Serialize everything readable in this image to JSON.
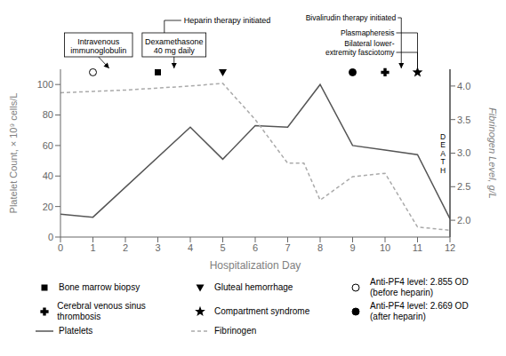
{
  "chart_data": {
    "type": "line",
    "xlabel": "Hospitalization Day",
    "ylabel": "Platelet Count, × 10⁹ cells/L",
    "y2label": "Fibrinogen Level, g/L",
    "xlim": [
      0,
      12
    ],
    "xticks": [
      0,
      1,
      2,
      3,
      4,
      5,
      6,
      7,
      8,
      9,
      10,
      11,
      12
    ],
    "ylim": [
      0,
      110
    ],
    "yticks": [
      0,
      20,
      40,
      60,
      80,
      100
    ],
    "y2lim": [
      1.75,
      4.25
    ],
    "y2ticks": [
      {
        "value": 2.0,
        "label": "2.0"
      },
      {
        "value": 2.5,
        "label": "2.5"
      },
      {
        "value": 3.0,
        "label": "3.0"
      },
      {
        "value": 3.5,
        "label": "3.5"
      },
      {
        "value": 4.0,
        "label": "4.0"
      }
    ],
    "grid": false,
    "legend": "bottom",
    "series": [
      {
        "name": "Platelets",
        "color": "#555555",
        "line_style": "solid",
        "x": [
          0,
          1,
          4,
          5,
          6,
          7,
          8,
          9,
          10,
          11,
          12
        ],
        "values": [
          15,
          13,
          72,
          51,
          73,
          72,
          100,
          60,
          57,
          54,
          12
        ]
      },
      {
        "name": "Fibrinogen",
        "color": "#aaaaaa",
        "line_style": "dashed",
        "axis": "y2",
        "x": [
          0,
          1,
          2,
          3,
          4,
          5,
          6,
          7,
          7.5,
          8,
          9,
          10,
          11,
          12
        ],
        "values": [
          3.9,
          3.92,
          3.94,
          3.97,
          4.0,
          4.04,
          3.5,
          2.85,
          2.85,
          2.3,
          2.65,
          2.7,
          1.9,
          1.85
        ]
      }
    ],
    "events": [
      {
        "name": "Bone marrow biopsy",
        "marker": "square",
        "color": "#000000",
        "x": 3,
        "y": 108
      },
      {
        "name": "Cerebral venous sinus thrombosis",
        "marker": "plus",
        "color": "#000000",
        "x": 10,
        "y": 108
      },
      {
        "name": "Gluteal hemorrhage",
        "marker": "triangle_down",
        "color": "#000000",
        "x": 5,
        "y": 108
      },
      {
        "name": "Compartment syndrome",
        "marker": "star",
        "color": "#000000",
        "x": 11,
        "y": 108
      },
      {
        "name": "Anti-PF4 level: 2.855 OD\n(before heparin)",
        "marker": "circle_open",
        "color": "#000000",
        "x": 1,
        "y": 108
      },
      {
        "name": "Anti-PF4 level: 2.669 OD\n(after heparin)",
        "marker": "circle",
        "color": "#000000",
        "x": 9,
        "y": 108
      }
    ],
    "annotations": [
      {
        "text": "Intravenous\nimmunoglobulin",
        "x": 1.5
      },
      {
        "text": "Dexamethasone\n40 mg daily",
        "x": 3.5
      },
      {
        "text": "Heparin therapy initiated",
        "x": 3.2
      },
      {
        "text": "Bivalirudin therapy initiated",
        "x": 10.5
      },
      {
        "text": "Plasmapheresis",
        "x": 11
      },
      {
        "text": "Bilateral lower-\nextremity fasciotomy",
        "x": 11
      },
      {
        "text": "D\nE\nA\nT\nH",
        "x": 12
      }
    ]
  }
}
